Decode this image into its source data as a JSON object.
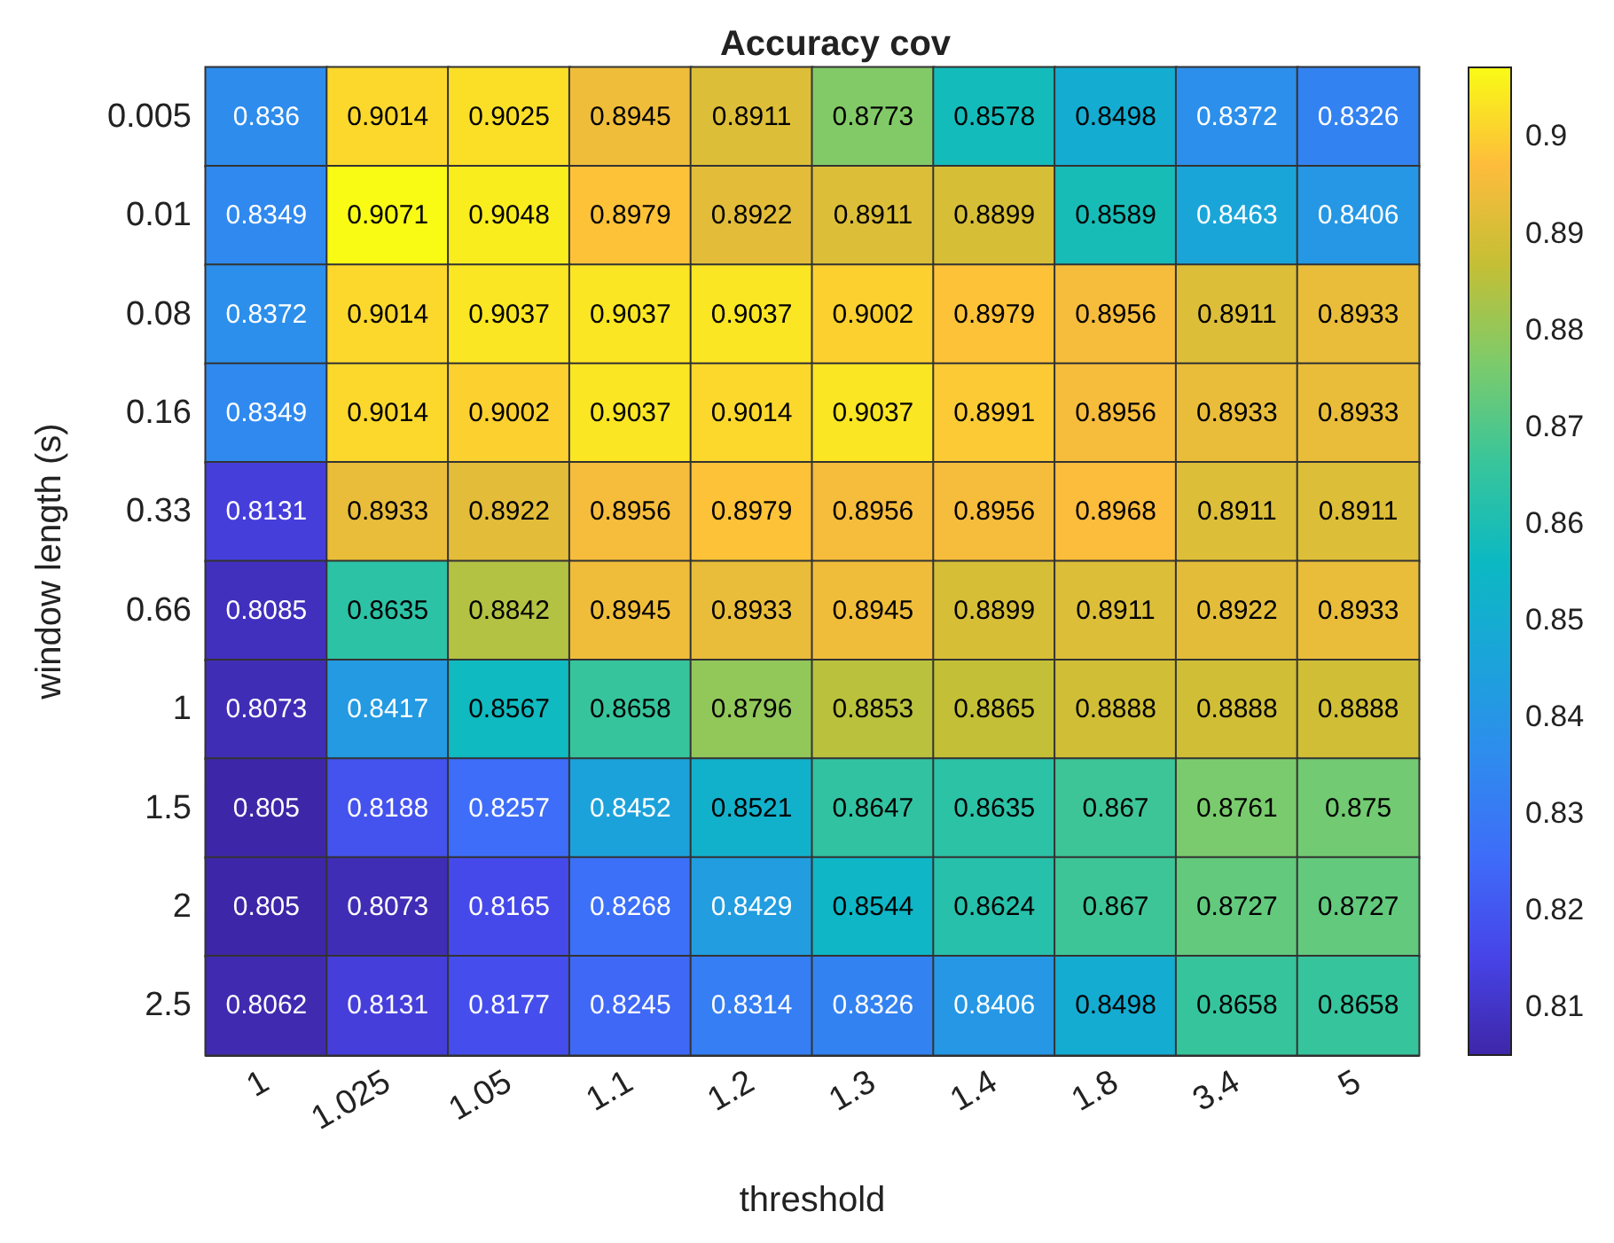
{
  "chart_data": {
    "type": "heatmap",
    "title": "Accuracy cov",
    "xlabel": "threshold",
    "ylabel": "window length (s)",
    "categories": [
      "1",
      "1.025",
      "1.05",
      "1.1",
      "1.2",
      "1.3",
      "1.4",
      "1.8",
      "3.4",
      "5"
    ],
    "y_categories": [
      "0.005",
      "0.01",
      "0.08",
      "0.16",
      "0.33",
      "0.66",
      "1",
      "1.5",
      "2",
      "2.5"
    ],
    "cells": [
      [
        0.836,
        0.9014,
        0.9025,
        0.8945,
        0.8911,
        0.8773,
        0.8578,
        0.8498,
        0.8372,
        0.8326
      ],
      [
        0.8349,
        0.9071,
        0.9048,
        0.8979,
        0.8922,
        0.8911,
        0.8899,
        0.8589,
        0.8463,
        0.8406
      ],
      [
        0.8372,
        0.9014,
        0.9037,
        0.9037,
        0.9037,
        0.9002,
        0.8979,
        0.8956,
        0.8911,
        0.8933
      ],
      [
        0.8349,
        0.9014,
        0.9002,
        0.9037,
        0.9014,
        0.9037,
        0.8991,
        0.8956,
        0.8933,
        0.8933
      ],
      [
        0.8131,
        0.8933,
        0.8922,
        0.8956,
        0.8979,
        0.8956,
        0.8956,
        0.8968,
        0.8911,
        0.8911
      ],
      [
        0.8085,
        0.8635,
        0.8842,
        0.8945,
        0.8933,
        0.8945,
        0.8899,
        0.8911,
        0.8922,
        0.8933
      ],
      [
        0.8073,
        0.8417,
        0.8567,
        0.8658,
        0.8796,
        0.8853,
        0.8865,
        0.8888,
        0.8888,
        0.8888
      ],
      [
        0.805,
        0.8188,
        0.8257,
        0.8452,
        0.8521,
        0.8647,
        0.8635,
        0.867,
        0.8761,
        0.875
      ],
      [
        0.805,
        0.8073,
        0.8165,
        0.8268,
        0.8429,
        0.8544,
        0.8624,
        0.867,
        0.8727,
        0.8727
      ],
      [
        0.8062,
        0.8131,
        0.8177,
        0.8245,
        0.8314,
        0.8326,
        0.8406,
        0.8498,
        0.8658,
        0.8658
      ]
    ],
    "clim": [
      0.805,
      0.9071
    ],
    "cticks": [
      0.81,
      0.82,
      0.83,
      0.84,
      0.85,
      0.86,
      0.87,
      0.88,
      0.89,
      0.9
    ],
    "data_labels": true
  }
}
